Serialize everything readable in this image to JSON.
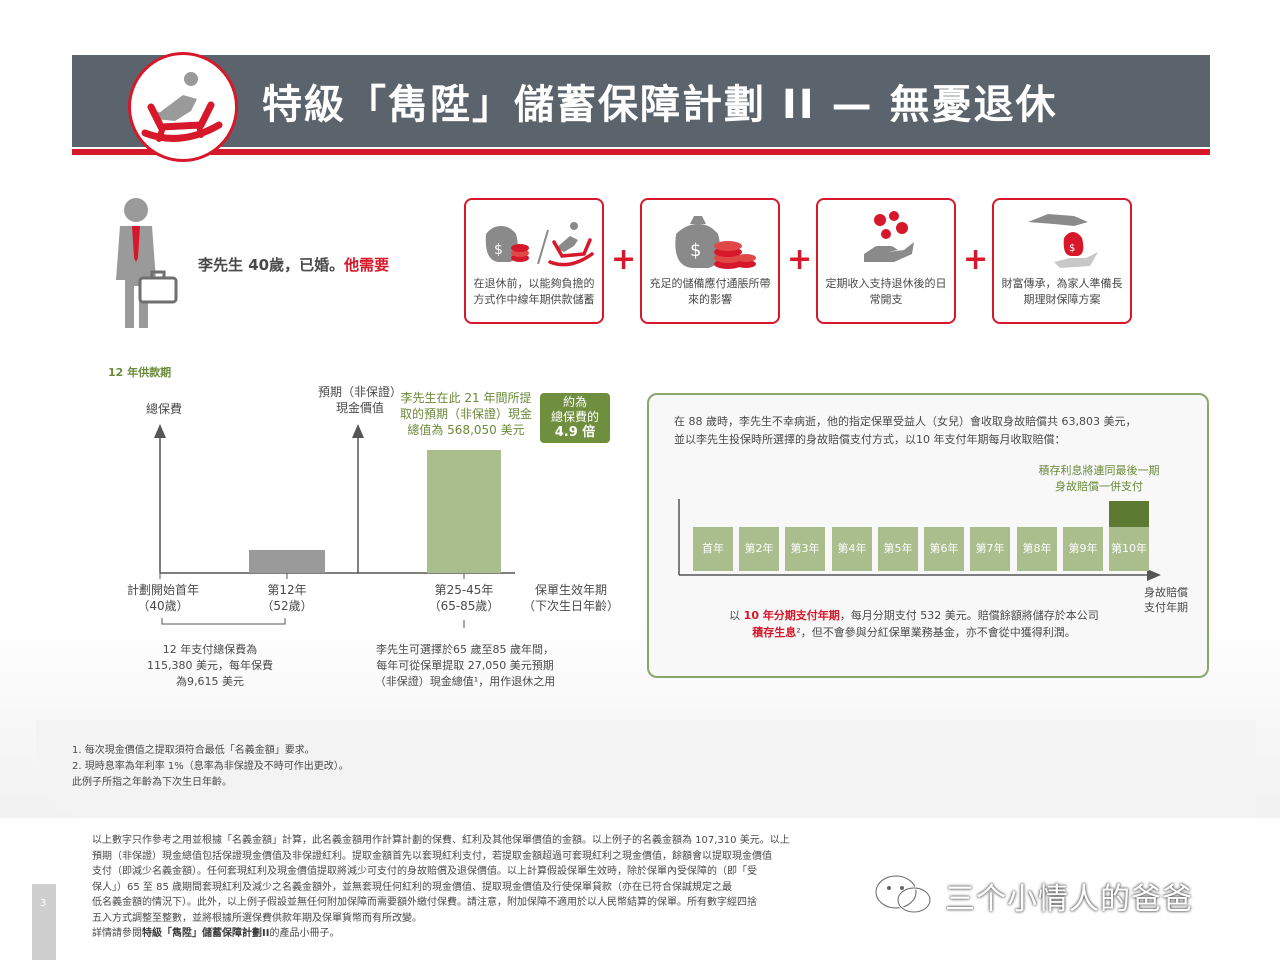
{
  "header": {
    "title": "特級「雋陞」儲蓄保障計劃 II — 無憂退休"
  },
  "person": {
    "text": "李先生 40歲，已婚。",
    "needs_label": "他需要"
  },
  "needs": [
    {
      "icon": "money-bag-rocking-chair-icon",
      "text": "在退休前，以能夠負擔的方式作中線年期供款儲蓄"
    },
    {
      "icon": "money-bag-coins-icon",
      "text": "充足的儲備應付通脹所帶來的影響"
    },
    {
      "icon": "hand-coins-icon",
      "text": "定期收入支持退休後的日常開支"
    },
    {
      "icon": "hands-money-bag-icon",
      "text": "財富傳承，為家人準備長期理財保障方案"
    }
  ],
  "plus_sign": "+",
  "left_chart": {
    "period_title": "12 年供款期",
    "y1_label": "總保費",
    "y2_label_line1": "預期（非保證）",
    "y2_label_line2": "現金價值",
    "value_note_line1": "李先生在此 21 年間所提",
    "value_note_line2": "取的預期（非保證）現金",
    "value_note_line3": "總值為 568,050 美元",
    "badge_line1": "約為",
    "badge_line2": "總保費的",
    "badge_line3": "4.9 倍",
    "x_start_line1": "計劃開始首年",
    "x_start_line2": "（40歲）",
    "x_mid_line1": "第12年",
    "x_mid_line2": "（52歲）",
    "x_late_line1": "第25-45年",
    "x_late_line2": "（65-85歲）",
    "x_axis_line1": "保單生效年期",
    "x_axis_line2": "（下次生日年齡）",
    "premium_note_line1": "12 年支付總保費為",
    "premium_note_line2": "115,380 美元，每年保費",
    "premium_note_line3": "為9,615 美元",
    "withdraw_note_line1": "李先生可選擇於65 歲至85 歲年間，",
    "withdraw_note_line2": "每年可從保單提取 27,050 美元預期",
    "withdraw_note_line3": "（非保證）現金總值¹，用作退休之用",
    "colors": {
      "premium_bar": "#9a9a9a",
      "value_bar": "#a9bd8d",
      "badge": "#6f8f3e"
    }
  },
  "right_panel": {
    "intro_line1": "在 88 歲時，李先生不幸病逝，他的指定保單受益人（女兒）會收取身故賠償共 63,803 美元，",
    "intro_line2": "並以李先生投保時所選擇的身故賠償支付方式，以10 年支付年期每月收取賠償：",
    "note_line1": "積存利息將連同最後一期",
    "note_line2": "身故賠償一併支付",
    "years": [
      "首年",
      "第2年",
      "第3年",
      "第4年",
      "第5年",
      "第6年",
      "第7年",
      "第8年",
      "第9年",
      "第10年"
    ],
    "axis_line1": "身故賠償",
    "axis_line2": "支付年期",
    "bottom_pre": "以 ",
    "bottom_red1": "10 年分期支付年期",
    "bottom_mid": "，每月分期支付 532 美元。賠償餘額將儲存於本公司",
    "bottom_red2": "積存生息",
    "bottom_post": "²，但不會參與分紅保單業務基金，亦不會從中獲得利潤。",
    "colors": {
      "box": "#a9bd8d",
      "box_dark": "#5d7a33",
      "border": "#8aa66a"
    }
  },
  "footnotes": [
    "1.  每次現金價值之提取須符合最低「名義金額」要求。",
    "2.  現時息率為年利率 1%（息率為非保證及不時可作出更改）。",
    "此例子所指之年齡為下次生日年齡。"
  ],
  "disclaimer": [
    "以上數字只作參考之用並根據「名義金額」計算，此名義金額用作計算計劃的保費、紅利及其他保單價值的金額。以上例子的名義金額為 107,310 美元。以上",
    "預期（非保證）現金總值包括保證現金價值及非保證紅利。提取金額首先以套現紅利支付，若提取金額超過可套現紅利之現金價值，餘額會以提取現金價值",
    "支付（即減少名義金額）。任何套現紅利及現金價值提取將減少可支付的身故賠償及退保價值。以上計算假設保單生效時，除於保單內受保障的（即「受",
    "保人」）65 至 85 歲期間套現紅利及減少之名義金額外，並無套現任何紅利的現金價值、提取現金價值及行使保單貸款（亦在已符合保誠規定之最",
    "低名義金額的情況下）。此外，以上例子假設並無任何附加保障而需要額外繳付保費。請注意，附加保障不適用於以人民幣結算的保單。所有數字經四捨",
    "五入方式調整至整數，並將根據所選保費供款年期及保單貨幣而有所改變。"
  ],
  "disclaimer_last_pre": "詳情請參閱",
  "disclaimer_last_bold": "特級「雋陞」儲蓄保障計劃II",
  "disclaimer_last_post": "的產品小冊子。",
  "page_number": "3",
  "watermark": "三个小情人的爸爸"
}
